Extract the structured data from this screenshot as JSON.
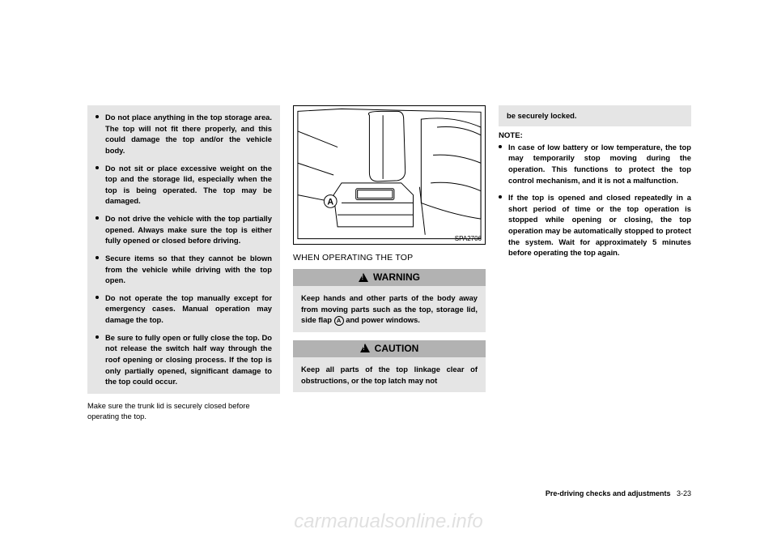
{
  "col1": {
    "bullets": [
      "Do not place anything in the top storage area. The top will not fit there properly, and this could damage the top and/or the vehicle body.",
      "Do not sit or place excessive weight on the top and the storage lid, especially when the top is being operated. The top may be damaged.",
      "Do not drive the vehicle with the top partially opened. Always make sure the top is either fully opened or closed before driving.",
      "Secure items so that they cannot be blown from the vehicle while driving with the top open.",
      "Do not operate the top manually except for emergency cases. Manual operation may damage the top.",
      "Be sure to fully open or fully close the top. Do not release the switch half way through the roof opening or closing process. If the top is only partially opened, significant damage to the top could occur."
    ],
    "plain": "Make sure the trunk lid is securely closed before operating the top."
  },
  "col2": {
    "figure_label": "SPA2706",
    "figure_letter": "A",
    "subtitle": "WHEN OPERATING THE TOP",
    "warning_head": "WARNING",
    "warning_body_pre": "Keep hands and other parts of the body away from moving parts such as the top, storage lid, side flap ",
    "warning_body_post": " and power windows.",
    "warning_letter": "A",
    "caution_head": "CAUTION",
    "caution_body": "Keep all parts of the top linkage clear of obstructions, or the top latch may not"
  },
  "col3": {
    "gray_continue": "be securely locked.",
    "note_title": "NOTE:",
    "notes": [
      "In case of low battery or low temperature, the top may temporarily stop moving during the operation. This functions to protect the top control mechanism, and it is not a malfunction.",
      "If the top is opened and closed repeatedly in a short period of time or the top operation is stopped while opening or closing, the top operation may be automatically stopped to protect the system. Wait for approximately 5 minutes before operating the top again."
    ]
  },
  "footer": {
    "section": "Pre-driving checks and adjustments",
    "page": "3-23"
  },
  "watermark": "carmanualsonline.info"
}
